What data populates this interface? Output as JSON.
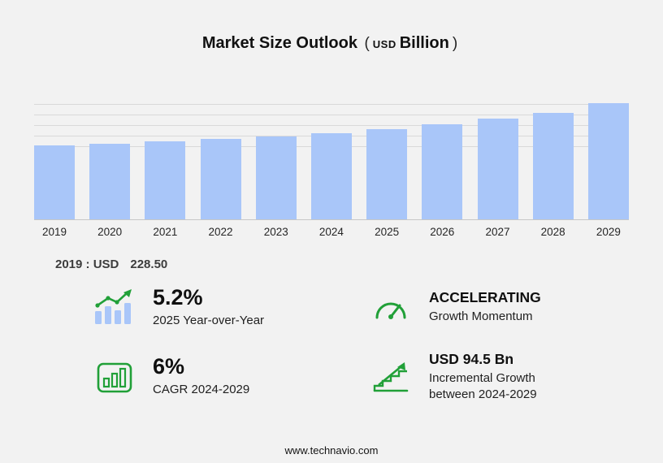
{
  "title": {
    "text": "Market Size Outlook",
    "open": "(",
    "currency": "USD",
    "unit": "Billion",
    "close": ")"
  },
  "chart_data": {
    "type": "bar",
    "title": "Market Size Outlook (USD Billion)",
    "categories": [
      "2019",
      "2020",
      "2021",
      "2022",
      "2023",
      "2024",
      "2025",
      "2026",
      "2027",
      "2028",
      "2029"
    ],
    "values": [
      228.5,
      234.4,
      241.0,
      248.3,
      256.4,
      266.0,
      279.8,
      294.8,
      311.5,
      330.3,
      360.5
    ],
    "ylabel": "USD Billion",
    "xlabel": "",
    "ylim": [
      0,
      372
    ],
    "grid": "horizontal",
    "legend": "none"
  },
  "annotation": {
    "label": "2019 : USD",
    "value": "228.50"
  },
  "stats": [
    {
      "icon": "bar-growth-icon",
      "value": "5.2%",
      "label": "2025 Year-over-Year"
    },
    {
      "icon": "speedometer-icon",
      "value": "ACCELERATING",
      "label": "Growth Momentum"
    },
    {
      "icon": "framed-bars-icon",
      "value": "6%",
      "label": "CAGR 2024-2029"
    },
    {
      "icon": "growth-arrow-icon",
      "value": "USD 94.5 Bn",
      "label": "Incremental Growth between 2024-2029"
    }
  ],
  "footer": {
    "text": "www.technavio.com"
  },
  "colors": {
    "bar": "#a9c6f9",
    "green": "#21a038",
    "background": "#f2f2f2"
  }
}
